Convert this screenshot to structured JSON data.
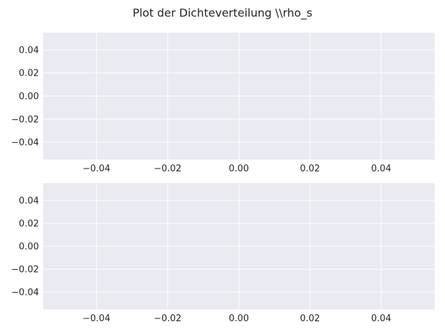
{
  "figure": {
    "suptitle": "Plot der Dichteverteilung \\\\rho_s"
  },
  "style": {
    "axes_facecolor": "#eaeaf2",
    "grid_color": "#ffffff",
    "text_color": "#262626"
  },
  "chart_data": [
    {
      "type": "line",
      "series": [],
      "xlim": [
        -0.055,
        0.055
      ],
      "ylim": [
        -0.055,
        0.055
      ],
      "xticks": [
        "−0.04",
        "−0.02",
        "0.00",
        "0.02",
        "0.04"
      ],
      "xtick_values": [
        -0.04,
        -0.02,
        0.0,
        0.02,
        0.04
      ],
      "yticks": [
        "0.04",
        "0.02",
        "0.00",
        "−0.02",
        "−0.04"
      ],
      "ytick_values": [
        0.04,
        0.02,
        0.0,
        -0.02,
        -0.04
      ],
      "grid": true,
      "legend": "none"
    },
    {
      "type": "line",
      "series": [],
      "xlim": [
        -0.055,
        0.055
      ],
      "ylim": [
        -0.055,
        0.055
      ],
      "xticks": [
        "−0.04",
        "−0.02",
        "0.00",
        "0.02",
        "0.04"
      ],
      "xtick_values": [
        -0.04,
        -0.02,
        0.0,
        0.02,
        0.04
      ],
      "yticks": [
        "0.04",
        "0.02",
        "0.00",
        "−0.02",
        "−0.04"
      ],
      "ytick_values": [
        0.04,
        0.02,
        0.0,
        -0.02,
        -0.04
      ],
      "grid": true,
      "legend": "none"
    }
  ]
}
